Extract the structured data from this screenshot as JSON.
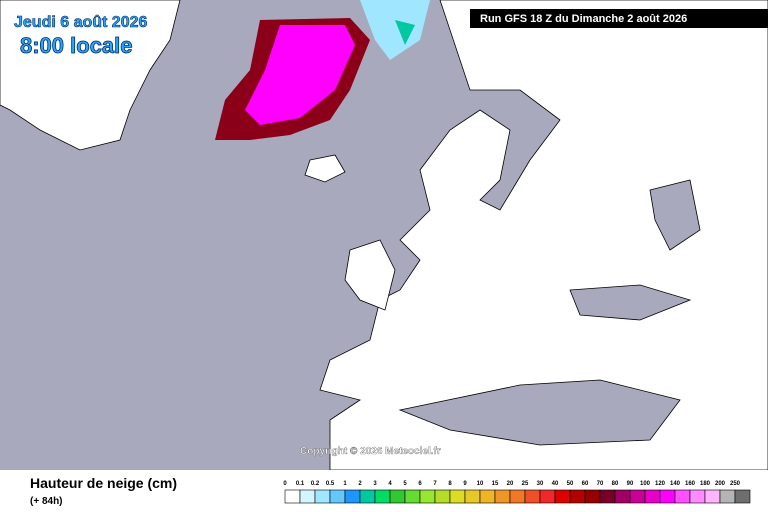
{
  "header": {
    "valid_date": "Jeudi 6 août 2026",
    "local_time": "8:00 locale",
    "run": "Run GFS 18 Z du Dimanche 2 août 2026"
  },
  "map": {
    "copyright": "Copyright © 2026 Meteociel.fr"
  },
  "legend": {
    "title": "Hauteur de neige (cm)",
    "lead": "(+ 84h)",
    "items": [
      {
        "label": "0",
        "color": "#ffffff"
      },
      {
        "label": "0.1",
        "color": "#d2f5ff"
      },
      {
        "label": "0.2",
        "color": "#a0e6ff"
      },
      {
        "label": "0.5",
        "color": "#64c8ff"
      },
      {
        "label": "1",
        "color": "#1e96ff"
      },
      {
        "label": "2",
        "color": "#00c8a0"
      },
      {
        "label": "3",
        "color": "#00dc64"
      },
      {
        "label": "4",
        "color": "#32c832"
      },
      {
        "label": "5",
        "color": "#64dc32"
      },
      {
        "label": "6",
        "color": "#96e632"
      },
      {
        "label": "7",
        "color": "#b4dc28"
      },
      {
        "label": "8",
        "color": "#dcdc28"
      },
      {
        "label": "9",
        "color": "#e6c828"
      },
      {
        "label": "10",
        "color": "#f0b428"
      },
      {
        "label": "15",
        "color": "#f09628"
      },
      {
        "label": "20",
        "color": "#f07828"
      },
      {
        "label": "25",
        "color": "#f05028"
      },
      {
        "label": "30",
        "color": "#f02828"
      },
      {
        "label": "40",
        "color": "#dc0000"
      },
      {
        "label": "50",
        "color": "#b40000"
      },
      {
        "label": "60",
        "color": "#960000"
      },
      {
        "label": "70",
        "color": "#780028"
      },
      {
        "label": "80",
        "color": "#a00064"
      },
      {
        "label": "90",
        "color": "#c80096"
      },
      {
        "label": "100",
        "color": "#e600c8"
      },
      {
        "label": "120",
        "color": "#ff00ff"
      },
      {
        "label": "140",
        "color": "#ff50ff"
      },
      {
        "label": "160",
        "color": "#ff8cff"
      },
      {
        "label": "180",
        "color": "#ffb4ff"
      },
      {
        "label": "200",
        "color": "#b4b4b4"
      },
      {
        "label": "250",
        "color": "#6e6e6e"
      }
    ]
  }
}
